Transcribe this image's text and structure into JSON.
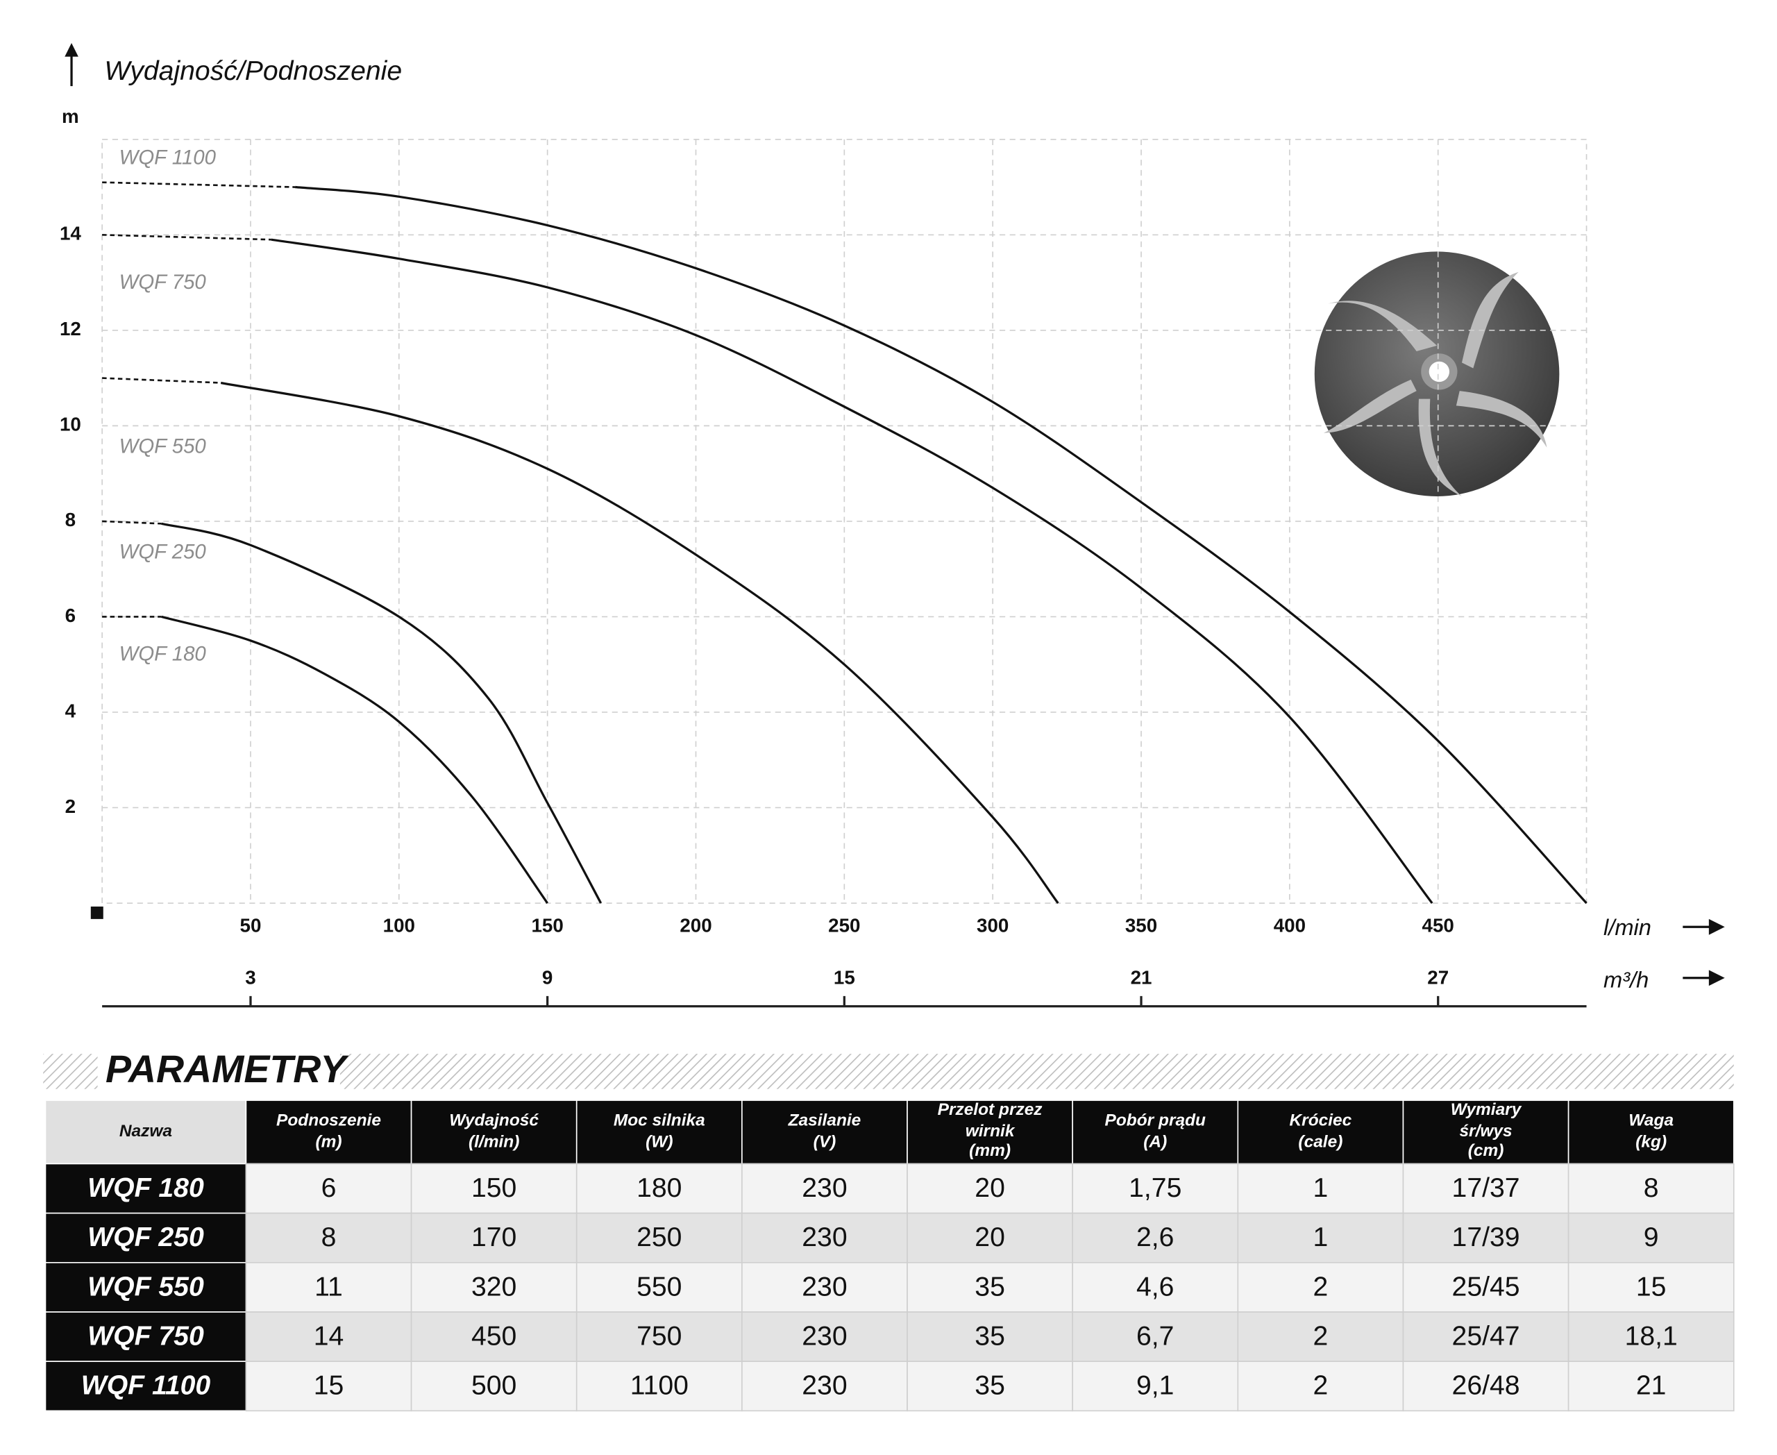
{
  "chart_data": {
    "type": "line",
    "y_title": "Wydajność/Podnoszenie",
    "y_unit": "m",
    "x_unit": "l/min",
    "x2_unit": "m³/h",
    "xlim": [
      0,
      500
    ],
    "xticks": [
      50,
      100,
      150,
      200,
      250,
      300,
      350,
      400,
      450
    ],
    "x2lim": [
      0,
      30
    ],
    "x2ticks": [
      3,
      9,
      15,
      21,
      27
    ],
    "ylim": [
      0,
      16
    ],
    "yticks": [
      2,
      4,
      6,
      8,
      10,
      12,
      14
    ],
    "grid": true,
    "series": [
      {
        "name": "WQF 1100",
        "color": "#111111",
        "x": [
          0,
          65,
          100,
          150,
          200,
          250,
          300,
          350,
          400,
          450,
          500
        ],
        "values": [
          15.1,
          15.0,
          14.8,
          14.2,
          13.3,
          12.1,
          10.5,
          8.4,
          6.1,
          3.4,
          0
        ]
      },
      {
        "name": "WQF 750",
        "color": "#111111",
        "x": [
          0,
          57,
          100,
          150,
          200,
          250,
          300,
          350,
          400,
          448
        ],
        "values": [
          14,
          13.9,
          13.5,
          12.9,
          11.9,
          10.4,
          8.7,
          6.6,
          3.9,
          0
        ]
      },
      {
        "name": "WQF 550",
        "color": "#111111",
        "x": [
          0,
          40,
          100,
          150,
          200,
          250,
          300,
          322
        ],
        "values": [
          11,
          10.9,
          10.2,
          9.1,
          7.3,
          5.0,
          1.8,
          0
        ]
      },
      {
        "name": "WQF 250",
        "color": "#111111",
        "x": [
          0,
          20,
          50,
          100,
          130,
          150,
          168
        ],
        "values": [
          8,
          7.95,
          7.5,
          6.0,
          4.3,
          2.1,
          0
        ]
      },
      {
        "name": "WQF 180",
        "color": "#111111",
        "x": [
          0,
          20,
          50,
          75,
          100,
          125,
          150
        ],
        "values": [
          6,
          6,
          5.5,
          4.8,
          3.8,
          2.2,
          0
        ]
      }
    ]
  },
  "table": {
    "title": "PARAMETRY",
    "header": [
      [
        "Nazwa"
      ],
      [
        "Podnoszenie",
        "(m)"
      ],
      [
        "Wydajność",
        "(l/min)"
      ],
      [
        "Moc silnika",
        "(W)"
      ],
      [
        "Zasilanie",
        "(V)"
      ],
      [
        "Przelot przez",
        "wirnik",
        "(mm)"
      ],
      [
        "Pobór prądu",
        "(A)"
      ],
      [
        "Króciec",
        "(cale)"
      ],
      [
        "Wymiary",
        "śr/wys",
        "(cm)"
      ],
      [
        "Waga",
        "(kg)"
      ]
    ],
    "rows": [
      [
        "WQF 180",
        "6",
        "150",
        "180",
        "230",
        "20",
        "1,75",
        "1",
        "17/37",
        "8"
      ],
      [
        "WQF 250",
        "8",
        "170",
        "250",
        "230",
        "20",
        "2,6",
        "1",
        "17/39",
        "9"
      ],
      [
        "WQF 550",
        "11",
        "320",
        "550",
        "230",
        "35",
        "4,6",
        "2",
        "25/45",
        "15"
      ],
      [
        "WQF 750",
        "14",
        "450",
        "750",
        "230",
        "35",
        "6,7",
        "2",
        "25/47",
        "18,1"
      ],
      [
        "WQF 1100",
        "15",
        "500",
        "1100",
        "230",
        "35",
        "9,1",
        "2",
        "26/48",
        "21"
      ]
    ]
  }
}
